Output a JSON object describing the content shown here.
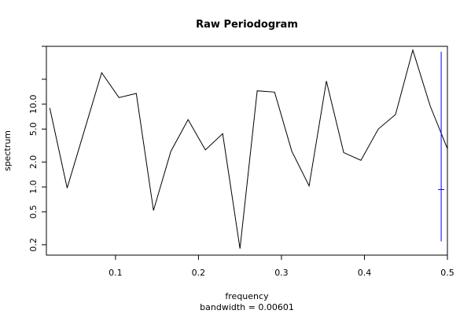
{
  "chart_data": {
    "type": "line",
    "title": "Raw Periodogram",
    "xlabel": "frequency",
    "ylabel": "spectrum",
    "subtitle": "bandwidth = 0.00601",
    "y_scale": "log",
    "xlim": [
      0.0167,
      0.5
    ],
    "ylim": [
      0.15,
      50
    ],
    "x_ticks": [
      0.1,
      0.2,
      0.3,
      0.4,
      0.5
    ],
    "x_tick_labels": [
      "0.1",
      "0.2",
      "0.3",
      "0.4",
      "0.5"
    ],
    "y_ticks": [
      0.2,
      0.5,
      1.0,
      2.0,
      5.0,
      10.0,
      20.0,
      50.0
    ],
    "y_tick_labels": [
      "0.2",
      "0.5",
      "1.0",
      "2.0",
      "5.0",
      "10.0",
      "",
      ""
    ],
    "grid": false,
    "series": [
      {
        "color": "#000000",
        "x": [
          0.0208,
          0.0417,
          0.0625,
          0.0833,
          0.1042,
          0.125,
          0.1458,
          0.1667,
          0.1875,
          0.2083,
          0.2292,
          0.25,
          0.2708,
          0.2917,
          0.3125,
          0.3333,
          0.3542,
          0.375,
          0.3958,
          0.4167,
          0.4375,
          0.4583,
          0.4792,
          0.5
        ],
        "y": [
          9.0,
          0.97,
          4.8,
          24.0,
          12.0,
          13.5,
          0.52,
          2.7,
          6.5,
          2.8,
          4.4,
          0.18,
          14.5,
          14.0,
          2.7,
          1.03,
          19.0,
          2.6,
          2.1,
          5.0,
          7.5,
          45.0,
          9.5,
          2.9
        ]
      }
    ],
    "error_bar": {
      "color": "#0000ff",
      "x": 0.4925,
      "center": 0.93,
      "lower": 0.22,
      "upper": 43.0
    }
  }
}
